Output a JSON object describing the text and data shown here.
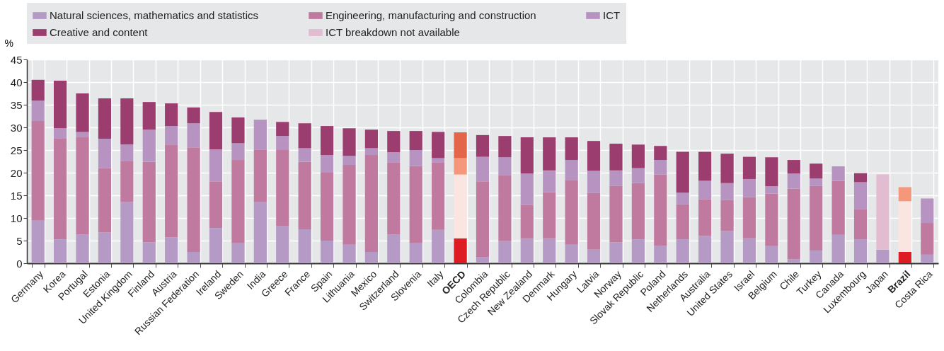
{
  "chart_data": {
    "type": "bar",
    "stacked": true,
    "ylabel": "%",
    "categories": [
      "Germany",
      "Korea",
      "Portugal",
      "Estonia",
      "United Kingdom",
      "Finland",
      "Austria",
      "Russian Federation",
      "Ireland",
      "Sweden",
      "India",
      "Greece",
      "France",
      "Spain",
      "Lithuania",
      "Mexico",
      "Switzerland",
      "Slovenia",
      "Italy",
      "OECD",
      "Colombia",
      "Czech Republic",
      "New Zealand",
      "Denmark",
      "Hungary",
      "Latvia",
      "Norway",
      "Slovak Republic",
      "Poland",
      "Netherlands",
      "Australia",
      "United States",
      "Israel",
      "Belgium",
      "Chile",
      "Turkey",
      "Canada",
      "Luxembourg",
      "Japan",
      "Brazil",
      "Costa Rica"
    ],
    "series": [
      {
        "name": "Natural sciences, mathematics and statistics",
        "color": "#b59ac6",
        "values": [
          9.4,
          5.3,
          6.4,
          6.8,
          13.5,
          4.6,
          5.7,
          2.5,
          7.8,
          4.4,
          13.5,
          8.3,
          7.5,
          5.0,
          4.1,
          2.5,
          6.4,
          4.4,
          7.4,
          5.5,
          1.4,
          4.9,
          5.5,
          5.5,
          4.1,
          3.0,
          4.6,
          5.3,
          3.9,
          5.3,
          6.0,
          7.1,
          5.5,
          3.8,
          0.9,
          2.8,
          6.3,
          5.3,
          3.0,
          2.5,
          1.9
        ],
        "colors": [
          null,
          null,
          null,
          null,
          null,
          null,
          null,
          null,
          null,
          null,
          null,
          null,
          null,
          null,
          null,
          null,
          null,
          null,
          null,
          "#dd1c24",
          null,
          null,
          null,
          null,
          null,
          null,
          null,
          null,
          null,
          null,
          null,
          null,
          null,
          null,
          null,
          null,
          null,
          null,
          null,
          "#dd1c24",
          null
        ]
      },
      {
        "name": "Engineering, manufacturing and construction",
        "color": "#c07aa0",
        "values": [
          22.0,
          22.3,
          21.4,
          14.2,
          9.1,
          17.8,
          20.5,
          23.1,
          10.3,
          18.4,
          11.6,
          16.7,
          14.9,
          15.0,
          17.6,
          21.4,
          15.8,
          17.1,
          14.8,
          14.1,
          16.7,
          14.6,
          7.4,
          10.2,
          14.3,
          12.5,
          12.5,
          12.4,
          15.7,
          7.7,
          8.1,
          6.9,
          9.1,
          11.6,
          15.6,
          14.3,
          11.9,
          6.6,
          null,
          11.2,
          7.0
        ],
        "colors": [
          null,
          null,
          null,
          null,
          null,
          null,
          null,
          null,
          null,
          null,
          null,
          null,
          null,
          null,
          null,
          null,
          null,
          null,
          null,
          "#fbe5e0",
          null,
          null,
          null,
          null,
          null,
          null,
          null,
          null,
          null,
          null,
          null,
          null,
          null,
          null,
          null,
          null,
          null,
          null,
          null,
          "#fbe5e0",
          null
        ]
      },
      {
        "name": "ICT",
        "color": "#b793c2",
        "values": [
          4.5,
          2.2,
          1.2,
          6.5,
          3.6,
          7.1,
          4.1,
          5.3,
          7.0,
          3.7,
          6.6,
          3.1,
          3.0,
          3.9,
          2.0,
          1.5,
          2.3,
          3.5,
          1.0,
          3.6,
          5.4,
          3.9,
          6.9,
          4.8,
          4.4,
          4.9,
          3.4,
          3.3,
          3.2,
          2.6,
          4.1,
          3.7,
          4.0,
          1.6,
          3.3,
          1.6,
          3.2,
          6.0,
          null,
          3.1,
          5.4
        ],
        "colors": [
          null,
          null,
          null,
          null,
          null,
          null,
          null,
          null,
          null,
          null,
          null,
          null,
          null,
          null,
          null,
          null,
          null,
          null,
          null,
          "#f5977a",
          null,
          null,
          null,
          null,
          null,
          null,
          null,
          null,
          null,
          null,
          null,
          null,
          null,
          null,
          null,
          null,
          null,
          null,
          null,
          "#f5977a",
          null
        ]
      },
      {
        "name": "Creative and content",
        "color": "#9b3d6e",
        "values": [
          4.6,
          10.5,
          8.5,
          8.9,
          10.2,
          6.1,
          5.0,
          3.5,
          8.3,
          5.7,
          null,
          3.1,
          5.5,
          6.4,
          6.1,
          4.1,
          4.7,
          4.2,
          5.8,
          5.7,
          4.8,
          4.7,
          8.0,
          7.3,
          5.0,
          6.6,
          5.9,
          5.2,
          3.1,
          9.0,
          6.4,
          6.5,
          4.9,
          6.4,
          3.0,
          3.3,
          null,
          2.0,
          null,
          null,
          null
        ],
        "colors": [
          null,
          null,
          null,
          null,
          null,
          null,
          null,
          null,
          null,
          null,
          null,
          null,
          null,
          null,
          null,
          null,
          null,
          null,
          null,
          "#e3654a",
          null,
          null,
          null,
          null,
          null,
          null,
          null,
          null,
          null,
          null,
          null,
          null,
          null,
          null,
          null,
          null,
          null,
          null,
          null,
          null,
          null
        ]
      },
      {
        "name": "ICT breakdown not available",
        "color": "#e2bcd0",
        "values": [
          null,
          null,
          null,
          null,
          null,
          null,
          null,
          null,
          null,
          null,
          null,
          null,
          null,
          null,
          null,
          null,
          null,
          null,
          null,
          null,
          null,
          null,
          null,
          null,
          null,
          null,
          null,
          null,
          null,
          null,
          null,
          null,
          null,
          null,
          null,
          null,
          null,
          null,
          16.6,
          null,
          null
        ]
      }
    ],
    "ylim": [
      0,
      45
    ],
    "yticks": [
      0,
      5,
      10,
      15,
      20,
      25,
      30,
      35,
      40,
      45
    ],
    "grid": true,
    "legend": "top"
  }
}
